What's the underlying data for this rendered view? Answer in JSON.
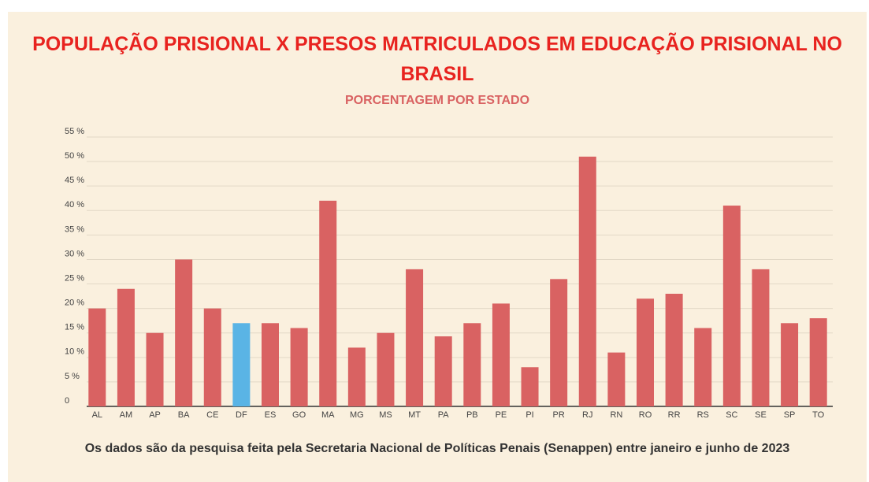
{
  "chart_data": {
    "type": "bar",
    "title": "POPULAÇÃO PRISIONAL X PRESOS MATRICULADOS EM EDUCAÇÃO PRISIONAL NO BRASIL",
    "subtitle": "PORCENTAGEM POR ESTADO",
    "footnote": "Os dados são da pesquisa feita pela Secretaria Nacional de Políticas Penais (Senappen) entre janeiro e junho de 2023",
    "categories": [
      "AL",
      "AM",
      "AP",
      "BA",
      "CE",
      "DF",
      "ES",
      "GO",
      "MA",
      "MG",
      "MS",
      "MT",
      "PA",
      "PB",
      "PE",
      "PI",
      "PR",
      "RJ",
      "RN",
      "RO",
      "RR",
      "RS",
      "SC",
      "SE",
      "SP",
      "TO"
    ],
    "values": [
      20,
      24,
      15,
      30,
      20,
      17,
      17,
      16,
      42,
      12,
      15,
      28,
      14.3,
      17,
      21,
      8,
      26,
      51,
      11,
      22,
      23,
      16,
      41,
      28,
      17,
      18
    ],
    "colors": [
      "#d96262",
      "#d96262",
      "#d96262",
      "#d96262",
      "#d96262",
      "#5ab4e5",
      "#d96262",
      "#d96262",
      "#d96262",
      "#d96262",
      "#d96262",
      "#d96262",
      "#d96262",
      "#d96262",
      "#d96262",
      "#d96262",
      "#d96262",
      "#d96262",
      "#d96262",
      "#d96262",
      "#d96262",
      "#d96262",
      "#d96262",
      "#d96262",
      "#d96262",
      "#d96262"
    ],
    "ylim": [
      0,
      55
    ],
    "yticks": [
      0,
      {
        "value": 5,
        "label": "5 %"
      },
      {
        "value": 10,
        "label": "10 %"
      },
      {
        "value": 15,
        "label": "15 %"
      },
      {
        "value": 20,
        "label": "20 %"
      },
      {
        "value": 25,
        "label": "25 %"
      },
      {
        "value": 30,
        "label": "30 %"
      },
      {
        "value": 35,
        "label": "35 %"
      },
      {
        "value": 40,
        "label": "40 %"
      },
      {
        "value": 45,
        "label": "45 %"
      },
      {
        "value": 50,
        "label": "50 %"
      },
      {
        "value": 55,
        "label": "55 %"
      }
    ],
    "grid": true
  }
}
